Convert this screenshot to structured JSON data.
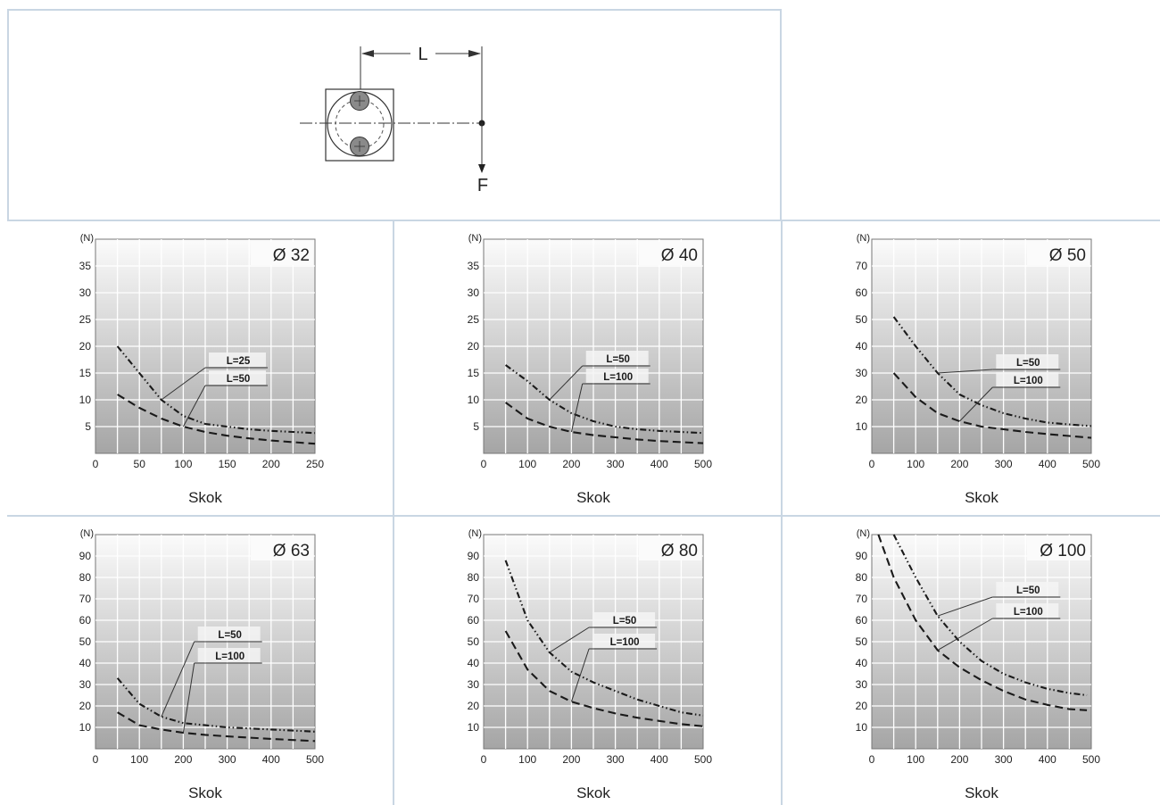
{
  "diagram": {
    "dimension_label": "L",
    "force_label": "F"
  },
  "chart_data": [
    {
      "type": "line",
      "title": "Ø 32",
      "xlabel": "Skok",
      "ylabel": "(N)",
      "xlim": [
        0,
        250
      ],
      "ylim": [
        0,
        40
      ],
      "xticks": [
        0,
        50,
        100,
        150,
        200,
        250
      ],
      "yticks": [
        5,
        10,
        15,
        20,
        25,
        30,
        35
      ],
      "series": [
        {
          "name": "L=25",
          "style": "dashdotdot",
          "points": [
            [
              25,
              20
            ],
            [
              50,
              15
            ],
            [
              75,
              10
            ],
            [
              100,
              7
            ],
            [
              125,
              5.5
            ],
            [
              150,
              5
            ],
            [
              175,
              4.5
            ],
            [
              200,
              4.2
            ],
            [
              225,
              4
            ],
            [
              250,
              3.8
            ]
          ]
        },
        {
          "name": "L=50",
          "style": "dashed",
          "points": [
            [
              25,
              11
            ],
            [
              50,
              8.5
            ],
            [
              75,
              6.5
            ],
            [
              100,
              5
            ],
            [
              125,
              4
            ],
            [
              150,
              3.3
            ],
            [
              175,
              2.8
            ],
            [
              200,
              2.4
            ],
            [
              225,
              2.1
            ],
            [
              250,
              1.8
            ]
          ]
        }
      ]
    },
    {
      "type": "line",
      "title": "Ø 40",
      "xlabel": "Skok",
      "ylabel": "(N)",
      "xlim": [
        0,
        500
      ],
      "ylim": [
        0,
        40
      ],
      "xticks": [
        0,
        100,
        200,
        300,
        400,
        500
      ],
      "yticks": [
        5,
        10,
        15,
        20,
        25,
        30,
        35
      ],
      "series": [
        {
          "name": "L=50",
          "style": "dashdotdot",
          "points": [
            [
              50,
              16.5
            ],
            [
              100,
              13.5
            ],
            [
              150,
              10
            ],
            [
              200,
              7.5
            ],
            [
              250,
              6
            ],
            [
              300,
              5
            ],
            [
              350,
              4.5
            ],
            [
              400,
              4.2
            ],
            [
              450,
              4
            ],
            [
              500,
              3.8
            ]
          ]
        },
        {
          "name": "L=100",
          "style": "dashed",
          "points": [
            [
              50,
              9.5
            ],
            [
              100,
              6.5
            ],
            [
              150,
              5
            ],
            [
              200,
              4
            ],
            [
              250,
              3.4
            ],
            [
              300,
              3
            ],
            [
              350,
              2.6
            ],
            [
              400,
              2.3
            ],
            [
              450,
              2.1
            ],
            [
              500,
              1.9
            ]
          ]
        }
      ]
    },
    {
      "type": "line",
      "title": "Ø 50",
      "xlabel": "Skok",
      "ylabel": "(N)",
      "xlim": [
        0,
        500
      ],
      "ylim": [
        0,
        80
      ],
      "xticks": [
        0,
        100,
        200,
        300,
        400,
        500
      ],
      "yticks": [
        10,
        20,
        30,
        40,
        50,
        60,
        70
      ],
      "series": [
        {
          "name": "L=50",
          "style": "dashdotdot",
          "points": [
            [
              50,
              51
            ],
            [
              100,
              40
            ],
            [
              150,
              30
            ],
            [
              200,
              22
            ],
            [
              250,
              18
            ],
            [
              300,
              15
            ],
            [
              350,
              13
            ],
            [
              400,
              11.5
            ],
            [
              450,
              10.8
            ],
            [
              500,
              10.2
            ]
          ]
        },
        {
          "name": "L=100",
          "style": "dashed",
          "points": [
            [
              50,
              30
            ],
            [
              100,
              21
            ],
            [
              150,
              15
            ],
            [
              200,
              12
            ],
            [
              250,
              10
            ],
            [
              300,
              9
            ],
            [
              350,
              8
            ],
            [
              400,
              7.2
            ],
            [
              450,
              6.5
            ],
            [
              500,
              5.8
            ]
          ]
        }
      ]
    },
    {
      "type": "line",
      "title": "Ø 63",
      "xlabel": "Skok",
      "ylabel": "(N)",
      "xlim": [
        0,
        500
      ],
      "ylim": [
        0,
        100
      ],
      "xticks": [
        0,
        100,
        200,
        300,
        400,
        500
      ],
      "yticks": [
        10,
        20,
        30,
        40,
        50,
        60,
        70,
        80,
        90
      ],
      "series": [
        {
          "name": "L=50",
          "style": "dashdotdot",
          "points": [
            [
              50,
              33
            ],
            [
              100,
              21
            ],
            [
              150,
              15
            ],
            [
              200,
              12
            ],
            [
              250,
              11
            ],
            [
              300,
              10
            ],
            [
              350,
              9.5
            ],
            [
              400,
              9
            ],
            [
              450,
              8.5
            ],
            [
              500,
              8
            ]
          ]
        },
        {
          "name": "L=100",
          "style": "dashed",
          "points": [
            [
              50,
              17
            ],
            [
              100,
              11
            ],
            [
              150,
              9
            ],
            [
              200,
              7.5
            ],
            [
              250,
              6.5
            ],
            [
              300,
              5.8
            ],
            [
              350,
              5.2
            ],
            [
              400,
              4.6
            ],
            [
              450,
              4.1
            ],
            [
              500,
              3.6
            ]
          ]
        }
      ]
    },
    {
      "type": "line",
      "title": "Ø 80",
      "xlabel": "Skok",
      "ylabel": "(N)",
      "xlim": [
        0,
        500
      ],
      "ylim": [
        0,
        100
      ],
      "xticks": [
        0,
        100,
        200,
        300,
        400,
        500
      ],
      "yticks": [
        10,
        20,
        30,
        40,
        50,
        60,
        70,
        80,
        90
      ],
      "series": [
        {
          "name": "L=50",
          "style": "dashdotdot",
          "points": [
            [
              50,
              88
            ],
            [
              100,
              60
            ],
            [
              150,
              45
            ],
            [
              200,
              36
            ],
            [
              250,
              31
            ],
            [
              300,
              27
            ],
            [
              350,
              23
            ],
            [
              400,
              20
            ],
            [
              450,
              17
            ],
            [
              500,
              15.5
            ]
          ]
        },
        {
          "name": "L=100",
          "style": "dashed",
          "points": [
            [
              50,
              55
            ],
            [
              100,
              37
            ],
            [
              150,
              27
            ],
            [
              200,
              22
            ],
            [
              250,
              19
            ],
            [
              300,
              16.5
            ],
            [
              350,
              14.5
            ],
            [
              400,
              13
            ],
            [
              450,
              11.5
            ],
            [
              500,
              10.5
            ]
          ]
        }
      ]
    },
    {
      "type": "line",
      "title": "Ø 100",
      "xlabel": "Skok",
      "ylabel": "(N)",
      "xlim": [
        0,
        500
      ],
      "ylim": [
        0,
        100
      ],
      "xticks": [
        0,
        100,
        200,
        300,
        400,
        500
      ],
      "yticks": [
        10,
        20,
        30,
        40,
        50,
        60,
        70,
        80,
        90
      ],
      "series": [
        {
          "name": "L=50",
          "style": "dashdotdot",
          "points": [
            [
              50,
              100
            ],
            [
              100,
              80
            ],
            [
              150,
              62
            ],
            [
              200,
              50
            ],
            [
              250,
              41
            ],
            [
              300,
              35
            ],
            [
              350,
              31
            ],
            [
              400,
              28
            ],
            [
              450,
              26
            ],
            [
              490,
              25
            ]
          ]
        },
        {
          "name": "L=100",
          "style": "dashed",
          "points": [
            [
              15,
              100
            ],
            [
              50,
              80
            ],
            [
              100,
              60
            ],
            [
              150,
              46
            ],
            [
              200,
              38
            ],
            [
              250,
              32
            ],
            [
              300,
              27
            ],
            [
              350,
              23
            ],
            [
              400,
              20.5
            ],
            [
              450,
              18.5
            ],
            [
              490,
              18
            ]
          ]
        }
      ]
    }
  ]
}
